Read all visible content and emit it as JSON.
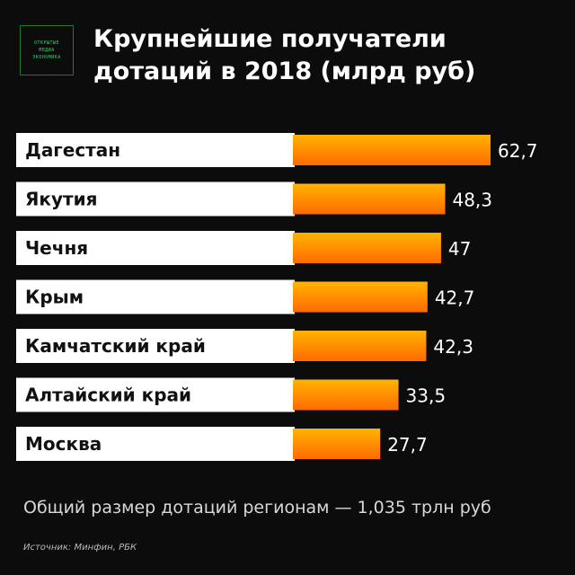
{
  "logo": {
    "lines": [
      "ОТКРЫТЫЕ",
      "МЕДИА",
      "ЭКОНОМИКА"
    ]
  },
  "note": "Общий размер дотаций регионам — 1,035 трлн руб",
  "source": "Источник: Минфин, РБК",
  "colors": {
    "bar_start": "#ffb400",
    "bar_end": "#ff6a00",
    "row_background": "#ffffff",
    "page_background": "#0c0c0c"
  },
  "chart_data": {
    "type": "bar",
    "orientation": "horizontal",
    "title": "Крупнейшие получатели дотаций в 2018 (млрд руб)",
    "categories": [
      "Дагестан",
      "Якутия",
      "Чечня",
      "Крым",
      "Камчатский край",
      "Алтайский край",
      "Москва"
    ],
    "values": [
      62.7,
      48.3,
      47,
      42.7,
      42.3,
      33.5,
      27.7
    ],
    "value_labels": [
      "62,7",
      "48,3",
      "47",
      "42,7",
      "42,3",
      "33,5",
      "27,7"
    ],
    "xlim": [
      0,
      62.7
    ],
    "grid": false,
    "legend": "none"
  }
}
